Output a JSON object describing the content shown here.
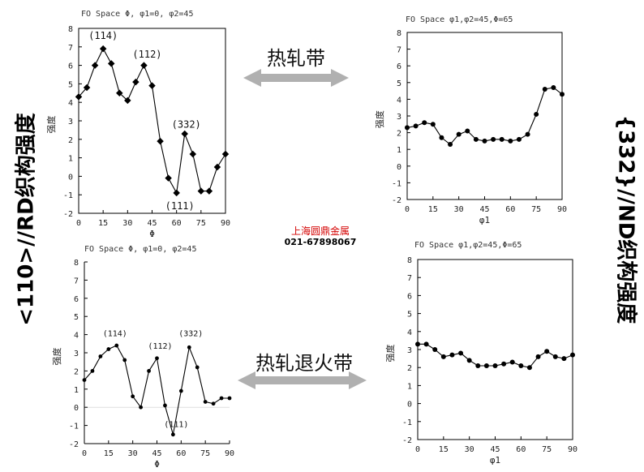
{
  "labels": {
    "left_vertical": "<110>//RD织构强度",
    "right_vertical": "{332}//ND织构强度",
    "arrow_top": "热轧带",
    "arrow_bottom": "热轧退火带",
    "watermark_name": "上海圆鼎金属",
    "watermark_phone": "021-67898067"
  },
  "colors": {
    "arrow": "#b0b0b0",
    "line": "#000000",
    "text": "#000000"
  },
  "chart_data": [
    {
      "id": "top-left",
      "type": "line",
      "title": "FO Space Φ, φ1=0, φ2=45",
      "xlabel": "Φ",
      "ylabel": "强度",
      "x": [
        0,
        5,
        10,
        15,
        20,
        25,
        30,
        35,
        40,
        45,
        50,
        55,
        60,
        65,
        70,
        75,
        80,
        85,
        90
      ],
      "values": [
        4.3,
        4.8,
        6.0,
        6.9,
        6.1,
        4.5,
        4.1,
        5.1,
        6.0,
        4.9,
        1.9,
        -0.1,
        -0.9,
        2.3,
        1.2,
        -0.8,
        -0.8,
        0.5,
        1.2
      ],
      "xlim": [
        0,
        90
      ],
      "ylim": [
        -2,
        8
      ],
      "xticks": [
        0,
        15,
        30,
        45,
        60,
        75,
        90
      ],
      "yticks": [
        -2,
        -1,
        0,
        1,
        2,
        3,
        4,
        5,
        6,
        7,
        8
      ],
      "annotations": [
        {
          "text": "(114)",
          "x": 15,
          "y": 7.6
        },
        {
          "text": "(112)",
          "x": 42,
          "y": 6.6
        },
        {
          "text": "(332)",
          "x": 66,
          "y": 2.8
        },
        {
          "text": "(111)",
          "x": 62,
          "y": -1.6
        }
      ]
    },
    {
      "id": "top-right",
      "type": "line",
      "title": "FO Space φ1,φ2=45,Φ=65",
      "xlabel": "φ1",
      "ylabel": "强度",
      "x": [
        0,
        5,
        10,
        15,
        20,
        25,
        30,
        35,
        40,
        45,
        50,
        55,
        60,
        65,
        70,
        75,
        80,
        85,
        90
      ],
      "values": [
        2.3,
        2.4,
        2.6,
        2.5,
        1.7,
        1.3,
        1.9,
        2.1,
        1.6,
        1.5,
        1.6,
        1.6,
        1.5,
        1.6,
        1.9,
        3.1,
        4.6,
        4.7,
        4.3
      ],
      "xlim": [
        0,
        90
      ],
      "ylim": [
        -2,
        8
      ],
      "xticks": [
        0,
        15,
        30,
        45,
        60,
        75,
        90
      ],
      "yticks": [
        -2,
        -1,
        0,
        1,
        2,
        3,
        4,
        5,
        6,
        7,
        8
      ],
      "annotations": []
    },
    {
      "id": "bottom-left",
      "type": "line",
      "title": "FO Space Φ, φ1=0, φ2=45",
      "xlabel": "Φ",
      "ylabel": "强度",
      "x": [
        0,
        5,
        10,
        15,
        20,
        25,
        30,
        35,
        40,
        45,
        50,
        55,
        60,
        65,
        70,
        75,
        80,
        85,
        90
      ],
      "values": [
        1.5,
        2.0,
        2.8,
        3.2,
        3.4,
        2.6,
        0.6,
        0.0,
        2.0,
        2.7,
        0.1,
        -1.5,
        0.9,
        3.3,
        2.2,
        0.3,
        0.2,
        0.5,
        0.5
      ],
      "xlim": [
        0,
        90
      ],
      "ylim": [
        -2,
        8
      ],
      "xticks": [
        0,
        15,
        30,
        45,
        60,
        75,
        90
      ],
      "yticks": [
        -2,
        -1,
        0,
        1,
        2,
        3,
        4,
        5,
        6,
        7,
        8
      ],
      "annotations": [
        {
          "text": "(114)",
          "x": 19,
          "y": 4.1
        },
        {
          "text": "(112)",
          "x": 47,
          "y": 3.4
        },
        {
          "text": "(332)",
          "x": 66,
          "y": 4.1
        },
        {
          "text": "(111)",
          "x": 57,
          "y": -0.9
        }
      ]
    },
    {
      "id": "bottom-right",
      "type": "line",
      "title": "FO Space φ1,φ2=45,Φ=65",
      "xlabel": "φ1",
      "ylabel": "强度",
      "x": [
        0,
        5,
        10,
        15,
        20,
        25,
        30,
        35,
        40,
        45,
        50,
        55,
        60,
        65,
        70,
        75,
        80,
        85,
        90
      ],
      "values": [
        3.3,
        3.3,
        3.0,
        2.6,
        2.7,
        2.8,
        2.4,
        2.1,
        2.1,
        2.1,
        2.2,
        2.3,
        2.1,
        2.0,
        2.6,
        2.9,
        2.6,
        2.5,
        2.7
      ],
      "xlim": [
        0,
        90
      ],
      "ylim": [
        -2,
        8
      ],
      "xticks": [
        0,
        15,
        30,
        45,
        60,
        75,
        90
      ],
      "yticks": [
        -2,
        -1,
        0,
        1,
        2,
        3,
        4,
        5,
        6,
        7,
        8
      ],
      "annotations": []
    }
  ]
}
